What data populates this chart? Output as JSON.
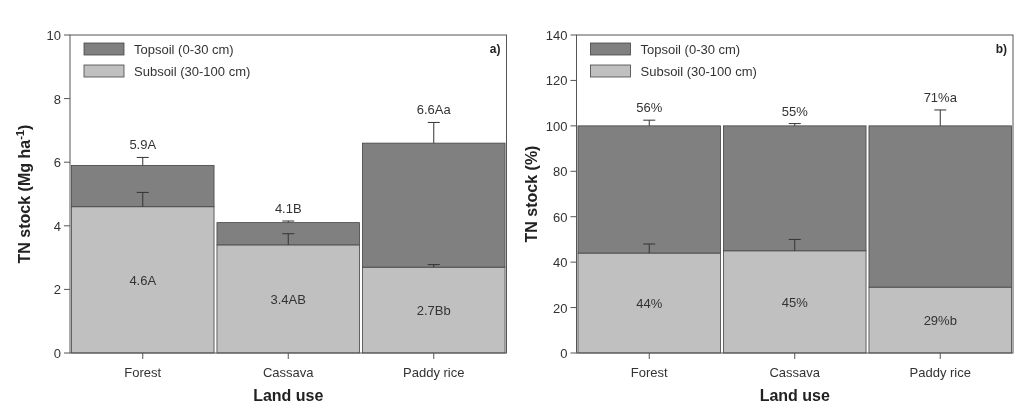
{
  "chart_data": [
    {
      "type": "bar",
      "stacked": true,
      "categories": [
        "Forest",
        "Cassava",
        "Paddy rice"
      ],
      "xlabel": "Land use",
      "ylabel": "TN stock (Mg ha$^{-1}$)",
      "ylim": [
        0,
        10
      ],
      "yticks": [
        0,
        2,
        4,
        6,
        8,
        10
      ],
      "legend": "top left",
      "annotations": [
        "a)"
      ],
      "series": [
        {
          "name": "Subsoil (30-100 cm)",
          "color": "#c0c0c0",
          "values": [
            4.6,
            3.4,
            2.7
          ],
          "errors": [
            [
              4.6,
              5.05
            ],
            [
              3.4,
              3.75
            ],
            [
              2.7,
              2.78
            ]
          ],
          "value_labels": [
            "4.6A",
            "3.4AB",
            "2.7Bb"
          ]
        },
        {
          "name": "Topsoil (0-30 cm)",
          "color": "#808080",
          "values": [
            1.3,
            0.7,
            3.9
          ],
          "errors": [
            [
              5.9,
              6.15
            ],
            [
              4.1,
              4.15
            ],
            [
              6.6,
              7.25
            ]
          ]
        }
      ],
      "totals": [
        "5.9A",
        "4.1B",
        "6.6Aa"
      ]
    },
    {
      "type": "bar",
      "stacked": true,
      "categories": [
        "Forest",
        "Cassava",
        "Paddy rice"
      ],
      "xlabel": "Land use",
      "ylabel": "TN stock (%)",
      "ylim": [
        0,
        140
      ],
      "yticks": [
        0,
        20,
        40,
        60,
        80,
        100,
        120,
        140
      ],
      "legend": "top left",
      "annotations": [
        "b)"
      ],
      "series": [
        {
          "name": "Subsoil (30-100 cm)",
          "color": "#c0c0c0",
          "values": [
            44,
            45,
            29
          ],
          "errors": [
            [
              44,
              48
            ],
            [
              45,
              50
            ],
            null
          ],
          "value_labels": [
            "44%",
            "45%",
            "29%b"
          ]
        },
        {
          "name": "Topsoil (0-30 cm)",
          "color": "#808080",
          "values": [
            56,
            55,
            71
          ],
          "errors": [
            [
              100,
              102.5
            ],
            [
              100,
              101
            ],
            [
              100,
              107
            ]
          ],
          "value_labels": [
            "56%",
            "55%",
            "71%a"
          ]
        }
      ]
    }
  ]
}
